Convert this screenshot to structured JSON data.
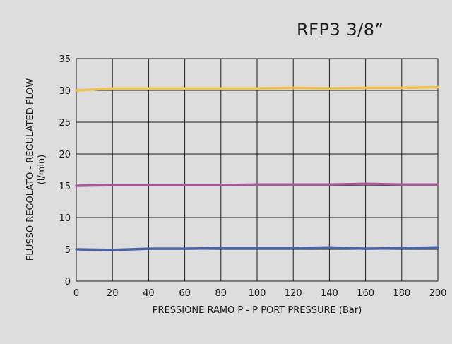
{
  "chart_data": {
    "type": "line",
    "title": "RFP3 3/8”",
    "xlabel": "PRESSIONE RAMO P - P PORT PRESSURE (Bar)",
    "ylabel_line1": "FLUSSO REGOLATO - REGULATED FLOW",
    "ylabel_line2": "(l/min)",
    "xlim": [
      0,
      200
    ],
    "ylim": [
      0,
      35
    ],
    "x_ticks": [
      "0",
      "20",
      "40",
      "60",
      "80",
      "100",
      "120",
      "140",
      "160",
      "180",
      "200"
    ],
    "y_ticks": [
      "0",
      "5",
      "10",
      "15",
      "20",
      "25",
      "30",
      "35"
    ],
    "grid": true,
    "x": [
      0,
      20,
      40,
      60,
      80,
      100,
      120,
      140,
      160,
      180,
      200
    ],
    "series": [
      {
        "color": "#f2c24a",
        "values": [
          30.0,
          30.3,
          30.3,
          30.3,
          30.3,
          30.3,
          30.4,
          30.3,
          30.4,
          30.4,
          30.5
        ]
      },
      {
        "color": "#a9579a",
        "values": [
          15.0,
          15.1,
          15.1,
          15.1,
          15.1,
          15.2,
          15.2,
          15.2,
          15.3,
          15.2,
          15.2
        ]
      },
      {
        "color": "#4a62a8",
        "values": [
          5.0,
          4.9,
          5.1,
          5.1,
          5.2,
          5.2,
          5.2,
          5.3,
          5.1,
          5.2,
          5.3
        ]
      }
    ]
  }
}
